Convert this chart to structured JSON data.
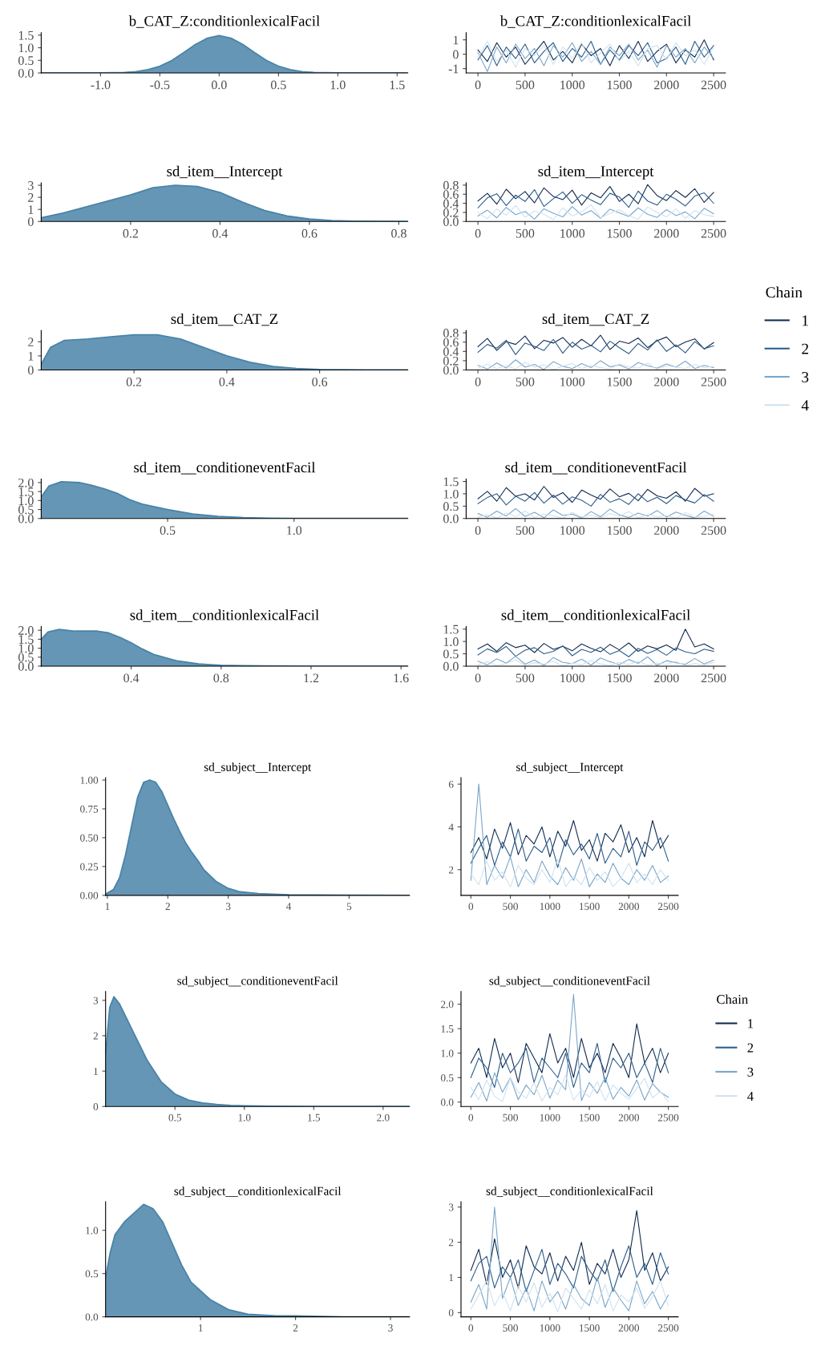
{
  "chart_data": [
    {
      "type": "area",
      "title": "b_CAT_Z:conditionlexicalFacil",
      "color": "#4a84a8",
      "x": [
        -1.5,
        -1.2,
        -1.0,
        -0.9,
        -0.8,
        -0.7,
        -0.6,
        -0.5,
        -0.4,
        -0.3,
        -0.2,
        -0.1,
        0.0,
        0.1,
        0.2,
        0.3,
        0.4,
        0.5,
        0.6,
        0.7,
        0.8,
        0.9,
        1.0,
        1.2,
        1.59
      ],
      "values": [
        0,
        0,
        0,
        0.01,
        0.02,
        0.05,
        0.13,
        0.27,
        0.49,
        0.8,
        1.13,
        1.38,
        1.48,
        1.38,
        1.13,
        0.8,
        0.49,
        0.27,
        0.13,
        0.05,
        0.02,
        0.01,
        0,
        0,
        0
      ],
      "xlim": [
        -1.5,
        1.59
      ],
      "xticks": [
        {
          "value": -1,
          "label": "-1.0"
        },
        -0.5,
        {
          "value": 0,
          "label": "0.0"
        },
        0.5,
        {
          "value": 1,
          "label": "1.0"
        },
        1.5
      ],
      "ylim": [
        0,
        1.6
      ],
      "yticks": [
        {
          "value": 0,
          "label": "0.0"
        },
        0.5,
        {
          "value": 1,
          "label": "1.0"
        },
        1.5
      ]
    },
    {
      "type": "line",
      "title": "b_CAT_Z:conditionlexicalFacil",
      "x": [
        0,
        100,
        200,
        300,
        400,
        500,
        600,
        700,
        800,
        900,
        1000,
        1100,
        1200,
        1300,
        1400,
        1500,
        1600,
        1700,
        1800,
        1900,
        2000,
        2100,
        2200,
        2300,
        2400,
        2500
      ],
      "xlim": [
        -125,
        2625
      ],
      "xticks": [
        0,
        500,
        1000,
        1500,
        2000,
        2500
      ],
      "ylim": [
        -1.3,
        1.5
      ],
      "yticks": [
        -1,
        0,
        1
      ],
      "series": [
        {
          "color": "#132b4f",
          "values": [
            0.3,
            -0.5,
            0.8,
            -0.2,
            0.5,
            -0.7,
            0.1,
            0.9,
            -0.4,
            0.2,
            -0.6,
            0.7,
            -0.1,
            0.4,
            -0.8,
            0.6,
            -0.3,
            0.9,
            -0.5,
            0.2,
            0.7,
            -0.6,
            0.3,
            -0.2,
            1.0,
            -0.4
          ]
        },
        {
          "color": "#2c5d8c",
          "values": [
            -0.4,
            0.6,
            -0.8,
            0.5,
            -0.3,
            0.7,
            -0.6,
            0.2,
            0.8,
            -0.5,
            0.4,
            -0.2,
            0.9,
            -0.7,
            0.3,
            -0.4,
            0.6,
            -0.1,
            0.8,
            -0.6,
            -0.3,
            0.5,
            -0.7,
            0.9,
            -0.2,
            0.6
          ]
        },
        {
          "color": "#7aa6c9",
          "values": [
            0.1,
            -1.2,
            0.5,
            -0.6,
            0.7,
            -0.3,
            0.4,
            -0.8,
            0.6,
            -0.2,
            0.8,
            -0.5,
            0.2,
            -0.7,
            0.5,
            -0.1,
            0.7,
            -0.4,
            0.3,
            -0.9,
            0.6,
            -0.2,
            0.4,
            -0.6,
            0.5,
            -0.3
          ]
        },
        {
          "color": "#d0e2ef",
          "values": [
            -0.2,
            0.9,
            -0.5,
            0.3,
            -0.9,
            0.4,
            -0.1,
            0.6,
            -0.7,
            0.5,
            -0.3,
            0.8,
            -0.6,
            0.1,
            0.7,
            -0.5,
            0.2,
            -0.8,
            0.4,
            0.6,
            -0.4,
            0.8,
            -0.1,
            0.3,
            -0.7,
            0.5
          ]
        }
      ]
    },
    {
      "type": "area",
      "title": "sd_item__Intercept",
      "color": "#4a84a8",
      "x": [
        0,
        0.05,
        0.1,
        0.15,
        0.2,
        0.25,
        0.3,
        0.35,
        0.4,
        0.45,
        0.5,
        0.55,
        0.6,
        0.65,
        0.7,
        0.82
      ],
      "values": [
        0.3,
        0.7,
        1.2,
        1.7,
        2.2,
        2.8,
        3.0,
        2.9,
        2.4,
        1.6,
        0.9,
        0.45,
        0.2,
        0.08,
        0.03,
        0
      ],
      "xlim": [
        0,
        0.82
      ],
      "xticks": [
        0.2,
        0.4,
        0.6,
        0.8
      ],
      "ylim": [
        0,
        3.2
      ],
      "yticks": [
        0,
        1,
        2,
        3
      ]
    },
    {
      "type": "line",
      "title": "sd_item__Intercept",
      "x": [
        0,
        100,
        200,
        300,
        400,
        500,
        600,
        700,
        800,
        900,
        1000,
        1100,
        1200,
        1300,
        1400,
        1500,
        1600,
        1700,
        1800,
        1900,
        2000,
        2100,
        2200,
        2300,
        2400,
        2500
      ],
      "xlim": [
        -125,
        2625
      ],
      "xticks": [
        0,
        500,
        1000,
        1500,
        2000,
        2500
      ],
      "ylim": [
        0,
        0.85
      ],
      "yticks": [
        {
          "value": 0,
          "label": "0.0"
        },
        0.2,
        0.4,
        0.6,
        0.8
      ],
      "series": [
        {
          "color": "#132b4f",
          "values": [
            0.45,
            0.62,
            0.38,
            0.71,
            0.5,
            0.66,
            0.41,
            0.74,
            0.55,
            0.48,
            0.69,
            0.36,
            0.63,
            0.52,
            0.77,
            0.44,
            0.6,
            0.39,
            0.81,
            0.57,
            0.46,
            0.68,
            0.53,
            0.72,
            0.42,
            0.64
          ]
        },
        {
          "color": "#2c5d8c",
          "values": [
            0.3,
            0.52,
            0.61,
            0.35,
            0.58,
            0.44,
            0.7,
            0.33,
            0.5,
            0.65,
            0.4,
            0.59,
            0.47,
            0.37,
            0.62,
            0.54,
            0.31,
            0.67,
            0.45,
            0.36,
            0.6,
            0.49,
            0.34,
            0.56,
            0.63,
            0.4
          ]
        },
        {
          "color": "#7aa6c9",
          "values": [
            0.12,
            0.25,
            0.08,
            0.31,
            0.15,
            0.22,
            0.05,
            0.28,
            0.18,
            0.1,
            0.33,
            0.14,
            0.24,
            0.07,
            0.27,
            0.19,
            0.11,
            0.3,
            0.16,
            0.09,
            0.26,
            0.13,
            0.21,
            0.06,
            0.29,
            0.17
          ]
        },
        {
          "color": "#d0e2ef",
          "values": [
            0.2,
            0.06,
            0.27,
            0.14,
            0.35,
            0.09,
            0.23,
            0.16,
            0.04,
            0.3,
            0.12,
            0.21,
            0.37,
            0.08,
            0.18,
            0.26,
            0.13,
            0.05,
            0.32,
            0.2,
            0.1,
            0.28,
            0.07,
            0.24,
            0.15,
            0.11
          ]
        }
      ]
    },
    {
      "type": "area",
      "title": "sd_item__CAT_Z",
      "color": "#4a84a8",
      "x": [
        0,
        0.02,
        0.05,
        0.1,
        0.15,
        0.2,
        0.25,
        0.3,
        0.35,
        0.4,
        0.45,
        0.5,
        0.55,
        0.6,
        0.7,
        0.79
      ],
      "values": [
        0.4,
        1.6,
        2.1,
        2.2,
        2.35,
        2.5,
        2.5,
        2.2,
        1.6,
        1.0,
        0.55,
        0.25,
        0.1,
        0.04,
        0,
        0
      ],
      "xlim": [
        0,
        0.79
      ],
      "xticks": [
        0.2,
        0.4,
        0.6
      ],
      "ylim": [
        0,
        2.8
      ],
      "yticks": [
        0,
        1,
        2
      ]
    },
    {
      "type": "line",
      "title": "sd_item__CAT_Z",
      "legend": "right",
      "legend_title": "Chain",
      "x": [
        0,
        100,
        200,
        300,
        400,
        500,
        600,
        700,
        800,
        900,
        1000,
        1100,
        1200,
        1300,
        1400,
        1500,
        1600,
        1700,
        1800,
        1900,
        2000,
        2100,
        2200,
        2300,
        2400,
        2500
      ],
      "xlim": [
        -125,
        2625
      ],
      "xticks": [
        0,
        500,
        1000,
        1500,
        2000,
        2500
      ],
      "ylim": [
        0,
        0.85
      ],
      "yticks": [
        {
          "value": 0,
          "label": "0.0"
        },
        0.2,
        0.4,
        0.6,
        0.8
      ],
      "series": [
        {
          "name": "1",
          "color": "#132b4f",
          "values": [
            0.5,
            0.68,
            0.42,
            0.61,
            0.55,
            0.73,
            0.46,
            0.64,
            0.58,
            0.7,
            0.49,
            0.66,
            0.52,
            0.75,
            0.44,
            0.62,
            0.57,
            0.69,
            0.48,
            0.63,
            0.71,
            0.5,
            0.6,
            0.67,
            0.45,
            0.59
          ]
        },
        {
          "name": "2",
          "color": "#2c5d8c",
          "values": [
            0.38,
            0.55,
            0.47,
            0.64,
            0.33,
            0.58,
            0.51,
            0.42,
            0.66,
            0.36,
            0.6,
            0.45,
            0.53,
            0.39,
            0.62,
            0.48,
            0.35,
            0.57,
            0.43,
            0.65,
            0.4,
            0.54,
            0.37,
            0.61,
            0.46,
            0.52
          ]
        },
        {
          "name": "3",
          "color": "#7aa6c9",
          "values": [
            0.1,
            0.02,
            0.15,
            0.04,
            0.22,
            0.06,
            0.12,
            0.01,
            0.18,
            0.08,
            0.03,
            0.14,
            0.05,
            0.2,
            0.07,
            0.11,
            0.02,
            0.16,
            0.09,
            0.04,
            0.13,
            0.06,
            0.19,
            0.03,
            0.1,
            0.05
          ]
        },
        {
          "name": "4",
          "color": "#d0e2ef",
          "values": [
            0.04,
            0.12,
            0.03,
            0.09,
            0.02,
            0.17,
            0.06,
            0.11,
            0.01,
            0.08,
            0.14,
            0.03,
            0.1,
            0.05,
            0.02,
            0.13,
            0.07,
            0.04,
            0.15,
            0.01,
            0.09,
            0.06,
            0.03,
            0.12,
            0.05,
            0.08
          ]
        }
      ]
    },
    {
      "type": "area",
      "title": "sd_item__conditioneventFacil",
      "color": "#4a84a8",
      "x": [
        0,
        0.03,
        0.08,
        0.15,
        0.2,
        0.25,
        0.3,
        0.35,
        0.4,
        0.5,
        0.6,
        0.7,
        0.8,
        0.9,
        1.0,
        1.2,
        1.45
      ],
      "values": [
        1.2,
        1.8,
        2.05,
        2.0,
        1.85,
        1.65,
        1.4,
        1.05,
        0.8,
        0.5,
        0.25,
        0.12,
        0.05,
        0.02,
        0.01,
        0,
        0
      ],
      "xlim": [
        0,
        1.45
      ],
      "xticks": [
        0.5,
        {
          "value": 1,
          "label": "1.0"
        }
      ],
      "ylim": [
        0,
        2.2
      ],
      "yticks": [
        {
          "value": 0,
          "label": "0.0"
        },
        0.5,
        {
          "value": 1,
          "label": "1.0"
        },
        1.5,
        {
          "value": 2,
          "label": "2.0"
        }
      ]
    },
    {
      "type": "line",
      "title": "sd_item__conditioneventFacil",
      "x": [
        0,
        100,
        200,
        300,
        400,
        500,
        600,
        700,
        800,
        900,
        1000,
        1100,
        1200,
        1300,
        1400,
        1500,
        1600,
        1700,
        1800,
        1900,
        2000,
        2100,
        2200,
        2300,
        2400,
        2500
      ],
      "xlim": [
        -125,
        2625
      ],
      "xticks": [
        0,
        500,
        1000,
        1500,
        2000,
        2500
      ],
      "ylim": [
        0,
        1.6
      ],
      "yticks": [
        {
          "value": 0,
          "label": "0.0"
        },
        0.5,
        {
          "value": 1,
          "label": "1.0"
        },
        1.5
      ],
      "series": [
        {
          "color": "#132b4f",
          "values": [
            0.8,
            1.1,
            0.7,
            1.25,
            0.9,
            1.0,
            0.75,
            1.3,
            0.85,
            1.05,
            0.65,
            1.15,
            0.95,
            0.78,
            1.2,
            0.88,
            1.02,
            0.72,
            1.18,
            0.92,
            0.82,
            1.08,
            0.7,
            1.22,
            0.9,
            1.0
          ]
        },
        {
          "color": "#2c5d8c",
          "values": [
            0.6,
            0.85,
            1.0,
            0.55,
            0.9,
            0.7,
            1.05,
            0.62,
            0.95,
            0.58,
            0.88,
            0.74,
            0.5,
            0.98,
            0.66,
            0.8,
            0.57,
            1.0,
            0.68,
            0.86,
            0.6,
            0.93,
            0.76,
            0.63,
            0.97,
            0.7
          ]
        },
        {
          "color": "#7aa6c9",
          "values": [
            0.2,
            0.05,
            0.3,
            0.1,
            0.4,
            0.08,
            0.25,
            0.03,
            0.35,
            0.12,
            0.18,
            0.02,
            0.28,
            0.07,
            0.38,
            0.15,
            0.04,
            0.22,
            0.1,
            0.32,
            0.06,
            0.26,
            0.13,
            0.02,
            0.3,
            0.09
          ]
        },
        {
          "color": "#d0e2ef",
          "values": [
            0.05,
            0.15,
            0.02,
            0.22,
            0.08,
            0.3,
            0.04,
            0.18,
            0.11,
            0.01,
            0.25,
            0.06,
            0.14,
            0.03,
            0.2,
            0.09,
            0.28,
            0.02,
            0.16,
            0.07,
            0.12,
            0.01,
            0.24,
            0.05,
            0.1,
            0.19
          ]
        }
      ]
    },
    {
      "type": "area",
      "title": "sd_item__conditionlexicalFacil",
      "color": "#4a84a8",
      "x": [
        0,
        0.03,
        0.08,
        0.15,
        0.2,
        0.25,
        0.3,
        0.35,
        0.4,
        0.45,
        0.5,
        0.6,
        0.7,
        0.8,
        0.9,
        1.0,
        1.2,
        1.63
      ],
      "values": [
        1.5,
        1.9,
        2.05,
        1.95,
        1.95,
        1.95,
        1.85,
        1.6,
        1.3,
        0.95,
        0.65,
        0.3,
        0.12,
        0.05,
        0.02,
        0.01,
        0,
        0
      ],
      "xlim": [
        0,
        1.63
      ],
      "xticks": [
        0.4,
        0.8,
        1.2,
        1.6
      ],
      "ylim": [
        0,
        2.2
      ],
      "yticks": [
        {
          "value": 0,
          "label": "0.0"
        },
        0.5,
        {
          "value": 1,
          "label": "1.0"
        },
        1.5,
        {
          "value": 2,
          "label": "2.0"
        }
      ]
    },
    {
      "type": "line",
      "title": "sd_item__conditionlexicalFacil",
      "x": [
        0,
        100,
        200,
        300,
        400,
        500,
        600,
        700,
        800,
        900,
        1000,
        1100,
        1200,
        1300,
        1400,
        1500,
        1600,
        1700,
        1800,
        1900,
        2000,
        2100,
        2200,
        2300,
        2400,
        2500
      ],
      "xlim": [
        -125,
        2625
      ],
      "xticks": [
        0,
        500,
        1000,
        1500,
        2000,
        2500
      ],
      "ylim": [
        0,
        1.6
      ],
      "yticks": [
        {
          "value": 0,
          "label": "0.0"
        },
        0.5,
        {
          "value": 1,
          "label": "1.0"
        },
        1.5
      ],
      "series": [
        {
          "color": "#132b4f",
          "values": [
            0.7,
            0.9,
            0.6,
            0.95,
            0.75,
            0.85,
            0.55,
            0.92,
            0.68,
            0.8,
            0.62,
            0.9,
            0.72,
            0.58,
            0.88,
            0.66,
            0.94,
            0.6,
            0.82,
            0.7,
            0.86,
            0.64,
            1.5,
            0.78,
            0.9,
            0.7
          ]
        },
        {
          "color": "#2c5d8c",
          "values": [
            0.45,
            0.7,
            0.55,
            0.8,
            0.4,
            0.65,
            0.75,
            0.5,
            0.6,
            0.82,
            0.42,
            0.68,
            0.56,
            0.77,
            0.48,
            0.63,
            0.38,
            0.72,
            0.52,
            0.67,
            0.44,
            0.74,
            0.58,
            0.5,
            0.69,
            0.6
          ]
        },
        {
          "color": "#7aa6c9",
          "values": [
            0.2,
            0.05,
            0.3,
            0.12,
            0.4,
            0.08,
            0.25,
            0.02,
            0.35,
            0.15,
            0.1,
            0.28,
            0.04,
            0.33,
            0.18,
            0.06,
            0.27,
            0.11,
            0.38,
            0.03,
            0.22,
            0.14,
            0.07,
            0.31,
            0.09,
            0.24
          ]
        },
        {
          "color": "#d0e2ef",
          "values": [
            0.05,
            0.18,
            0.03,
            0.1,
            0.26,
            0.02,
            0.14,
            0.08,
            0.2,
            0.01,
            0.12,
            0.05,
            0.23,
            0.09,
            0.02,
            0.16,
            0.06,
            0.21,
            0.03,
            0.13,
            0.07,
            0.19,
            0.01,
            0.11,
            0.04,
            0.15
          ]
        }
      ]
    },
    {
      "type": "area",
      "title": "sd_subject__Intercept",
      "color": "#4a84a8",
      "x": [
        0.97,
        1.1,
        1.2,
        1.3,
        1.4,
        1.5,
        1.6,
        1.7,
        1.8,
        1.9,
        2.0,
        2.1,
        2.2,
        2.3,
        2.4,
        2.5,
        2.6,
        2.8,
        3.0,
        3.2,
        3.5,
        4.0,
        5.0,
        6.0
      ],
      "values": [
        0.01,
        0.05,
        0.15,
        0.35,
        0.6,
        0.85,
        0.98,
        1.0,
        0.98,
        0.9,
        0.78,
        0.66,
        0.55,
        0.45,
        0.37,
        0.3,
        0.22,
        0.12,
        0.06,
        0.03,
        0.015,
        0.005,
        0.001,
        0
      ],
      "xlim": [
        0.97,
        6.0
      ],
      "xticks": [
        1,
        2,
        3,
        4,
        5
      ],
      "ylim": [
        0,
        1.02
      ],
      "yticks": [
        {
          "value": 0,
          "label": "0.00"
        },
        {
          "value": 0.25,
          "label": "0.25"
        },
        {
          "value": 0.5,
          "label": "0.50"
        },
        {
          "value": 0.75,
          "label": "0.75"
        },
        {
          "value": 1,
          "label": "1.00"
        }
      ]
    },
    {
      "type": "line",
      "title": "sd_subject__Intercept",
      "x": [
        0,
        100,
        200,
        300,
        400,
        500,
        600,
        700,
        800,
        900,
        1000,
        1100,
        1200,
        1300,
        1400,
        1500,
        1600,
        1700,
        1800,
        1900,
        2000,
        2100,
        2200,
        2300,
        2400,
        2500
      ],
      "xlim": [
        -125,
        2625
      ],
      "xticks": [
        0,
        500,
        1000,
        1500,
        2000,
        2500
      ],
      "ylim": [
        0.8,
        6.3
      ],
      "yticks": [
        2,
        4,
        6
      ],
      "series": [
        {
          "color": "#132b4f",
          "values": [
            2.8,
            3.5,
            2.5,
            3.9,
            3.0,
            4.2,
            2.7,
            3.6,
            3.2,
            4.0,
            2.6,
            3.8,
            3.1,
            4.3,
            2.9,
            3.4,
            2.4,
            3.7,
            3.3,
            4.1,
            2.8,
            3.5,
            2.6,
            4.3,
            3.0,
            3.6
          ]
        },
        {
          "color": "#2c5d8c",
          "values": [
            2.3,
            3.0,
            3.6,
            2.2,
            3.3,
            2.6,
            3.9,
            2.4,
            3.1,
            2.8,
            3.5,
            2.1,
            3.4,
            2.7,
            3.2,
            2.5,
            3.7,
            2.3,
            3.0,
            2.6,
            3.8,
            2.2,
            3.3,
            2.9,
            3.5,
            2.4
          ]
        },
        {
          "color": "#7aa6c9",
          "values": [
            1.5,
            6.0,
            1.3,
            2.2,
            1.6,
            2.6,
            1.2,
            2.0,
            1.4,
            2.4,
            1.7,
            1.3,
            2.1,
            1.5,
            2.5,
            1.2,
            1.8,
            1.4,
            2.3,
            1.6,
            1.3,
            2.0,
            1.5,
            2.2,
            1.4,
            1.7
          ]
        },
        {
          "color": "#d0e2ef",
          "values": [
            1.8,
            1.3,
            2.4,
            1.5,
            1.9,
            1.2,
            2.2,
            1.6,
            1.3,
            2.0,
            1.4,
            2.5,
            1.2,
            1.7,
            1.3,
            2.1,
            1.5,
            1.9,
            1.2,
            1.6,
            2.3,
            1.4,
            1.8,
            1.3,
            2.0,
            1.5
          ]
        }
      ]
    },
    {
      "type": "area",
      "title": "sd_subject__conditioneventFacil",
      "color": "#4a84a8",
      "x": [
        0,
        0.03,
        0.06,
        0.1,
        0.15,
        0.2,
        0.25,
        0.3,
        0.35,
        0.4,
        0.5,
        0.6,
        0.7,
        0.8,
        0.9,
        1.0,
        1.2,
        1.5,
        2.19
      ],
      "values": [
        1.5,
        2.8,
        3.1,
        2.9,
        2.5,
        2.1,
        1.7,
        1.3,
        1.0,
        0.7,
        0.35,
        0.18,
        0.1,
        0.06,
        0.03,
        0.02,
        0.01,
        0,
        0
      ],
      "xlim": [
        0,
        2.19
      ],
      "xticks": [
        0.5,
        {
          "value": 1,
          "label": "1.0"
        },
        1.5,
        {
          "value": 2,
          "label": "2.0"
        }
      ],
      "ylim": [
        0,
        3.25
      ],
      "yticks": [
        0,
        1,
        2,
        3
      ]
    },
    {
      "type": "line",
      "title": "sd_subject__conditioneventFacil",
      "legend": "right",
      "legend_title": "Chain",
      "x": [
        0,
        100,
        200,
        300,
        400,
        500,
        600,
        700,
        800,
        900,
        1000,
        1100,
        1200,
        1300,
        1400,
        1500,
        1600,
        1700,
        1800,
        1900,
        2000,
        2100,
        2200,
        2300,
        2400,
        2500
      ],
      "xlim": [
        -125,
        2625
      ],
      "xticks": [
        0,
        500,
        1000,
        1500,
        2000,
        2500
      ],
      "ylim": [
        -0.09,
        2.26
      ],
      "yticks": [
        {
          "value": 0,
          "label": "0.0"
        },
        0.5,
        {
          "value": 1,
          "label": "1.0"
        },
        1.5,
        {
          "value": 2,
          "label": "2.0"
        }
      ],
      "series": [
        {
          "name": "1",
          "color": "#132b4f",
          "values": [
            0.8,
            1.1,
            0.5,
            1.3,
            0.7,
            1.0,
            0.4,
            1.2,
            0.9,
            0.6,
            1.4,
            0.8,
            1.1,
            0.5,
            1.3,
            0.7,
            1.0,
            0.6,
            1.2,
            0.9,
            0.5,
            1.6,
            0.8,
            1.1,
            0.6,
            1.0
          ]
        },
        {
          "name": "2",
          "color": "#2c5d8c",
          "values": [
            0.5,
            0.9,
            0.7,
            0.3,
            1.0,
            0.6,
            0.8,
            1.1,
            0.4,
            0.9,
            0.7,
            0.5,
            1.0,
            0.3,
            0.8,
            0.6,
            1.2,
            0.4,
            0.9,
            0.7,
            1.0,
            0.5,
            0.8,
            0.4,
            1.1,
            0.6
          ]
        },
        {
          "name": "3",
          "color": "#7aa6c9",
          "values": [
            0.1,
            0.4,
            0.02,
            0.6,
            0.2,
            0.5,
            0.05,
            0.35,
            0.15,
            0.55,
            0.08,
            0.45,
            0.25,
            2.2,
            0.03,
            0.4,
            0.18,
            0.5,
            0.06,
            0.3,
            0.12,
            0.45,
            0.04,
            0.38,
            0.2,
            0.1
          ]
        },
        {
          "name": "4",
          "color": "#d0e2ef",
          "values": [
            0.3,
            0.05,
            0.45,
            0.12,
            0.01,
            0.5,
            0.2,
            0.08,
            0.4,
            0.02,
            0.3,
            0.15,
            0.55,
            0.04,
            0.25,
            0.1,
            0.42,
            0.03,
            0.35,
            0.18,
            0.06,
            0.28,
            0.48,
            0.09,
            0.22,
            0.01
          ]
        }
      ]
    },
    {
      "type": "area",
      "title": "sd_subject__conditionlexicalFacil",
      "color": "#4a84a8",
      "x": [
        0,
        0.05,
        0.1,
        0.2,
        0.3,
        0.4,
        0.5,
        0.6,
        0.7,
        0.8,
        0.9,
        1.0,
        1.1,
        1.2,
        1.3,
        1.5,
        1.8,
        2.0,
        2.5,
        3.2
      ],
      "values": [
        0.45,
        0.75,
        0.95,
        1.1,
        1.2,
        1.3,
        1.25,
        1.1,
        0.85,
        0.6,
        0.4,
        0.3,
        0.2,
        0.14,
        0.08,
        0.03,
        0.01,
        0.01,
        0,
        0
      ],
      "xlim": [
        0,
        3.2
      ],
      "xticks": [
        1,
        2,
        3
      ],
      "ylim": [
        0,
        1.33
      ],
      "yticks": [
        {
          "value": 0,
          "label": "0.0"
        },
        0.5,
        {
          "value": 1,
          "label": "1.0"
        }
      ]
    },
    {
      "type": "line",
      "title": "sd_subject__conditionlexicalFacil",
      "x": [
        0,
        100,
        200,
        300,
        400,
        500,
        600,
        700,
        800,
        900,
        1000,
        1100,
        1200,
        1300,
        1400,
        1500,
        1600,
        1700,
        1800,
        1900,
        2000,
        2100,
        2200,
        2300,
        2400,
        2500
      ],
      "xlim": [
        -125,
        2625
      ],
      "xticks": [
        0,
        500,
        1000,
        1500,
        2000,
        2500
      ],
      "ylim": [
        -0.12,
        3.15
      ],
      "yticks": [
        0,
        1,
        2,
        3
      ],
      "series": [
        {
          "color": "#132b4f",
          "values": [
            1.2,
            1.8,
            0.8,
            2.1,
            1.0,
            1.5,
            0.7,
            1.9,
            1.3,
            1.1,
            1.7,
            0.9,
            1.6,
            1.2,
            2.0,
            0.8,
            1.4,
            1.1,
            1.8,
            1.0,
            1.5,
            2.9,
            1.2,
            1.7,
            0.9,
            1.3
          ]
        },
        {
          "color": "#2c5d8c",
          "values": [
            0.9,
            1.4,
            1.6,
            0.7,
            1.3,
            1.0,
            1.5,
            0.6,
            1.2,
            1.8,
            0.8,
            1.4,
            1.1,
            0.7,
            1.6,
            1.2,
            0.9,
            1.5,
            0.6,
            1.3,
            1.9,
            1.0,
            1.4,
            0.8,
            1.7,
            1.1
          ]
        },
        {
          "color": "#7aa6c9",
          "values": [
            0.3,
            0.8,
            0.1,
            3.0,
            0.4,
            1.0,
            0.2,
            0.7,
            0.05,
            0.9,
            0.3,
            0.6,
            0.1,
            0.8,
            0.4,
            0.2,
            1.0,
            0.15,
            0.7,
            0.35,
            0.05,
            0.9,
            0.25,
            0.6,
            0.1,
            0.5
          ]
        },
        {
          "color": "#d0e2ef",
          "values": [
            0.1,
            0.5,
            0.9,
            0.2,
            0.6,
            0.05,
            0.75,
            0.3,
            0.85,
            0.15,
            0.55,
            0.02,
            0.7,
            0.4,
            0.1,
            0.65,
            0.25,
            0.8,
            0.05,
            0.5,
            0.3,
            0.7,
            0.12,
            0.45,
            0.9,
            0.2
          ]
        }
      ]
    }
  ]
}
